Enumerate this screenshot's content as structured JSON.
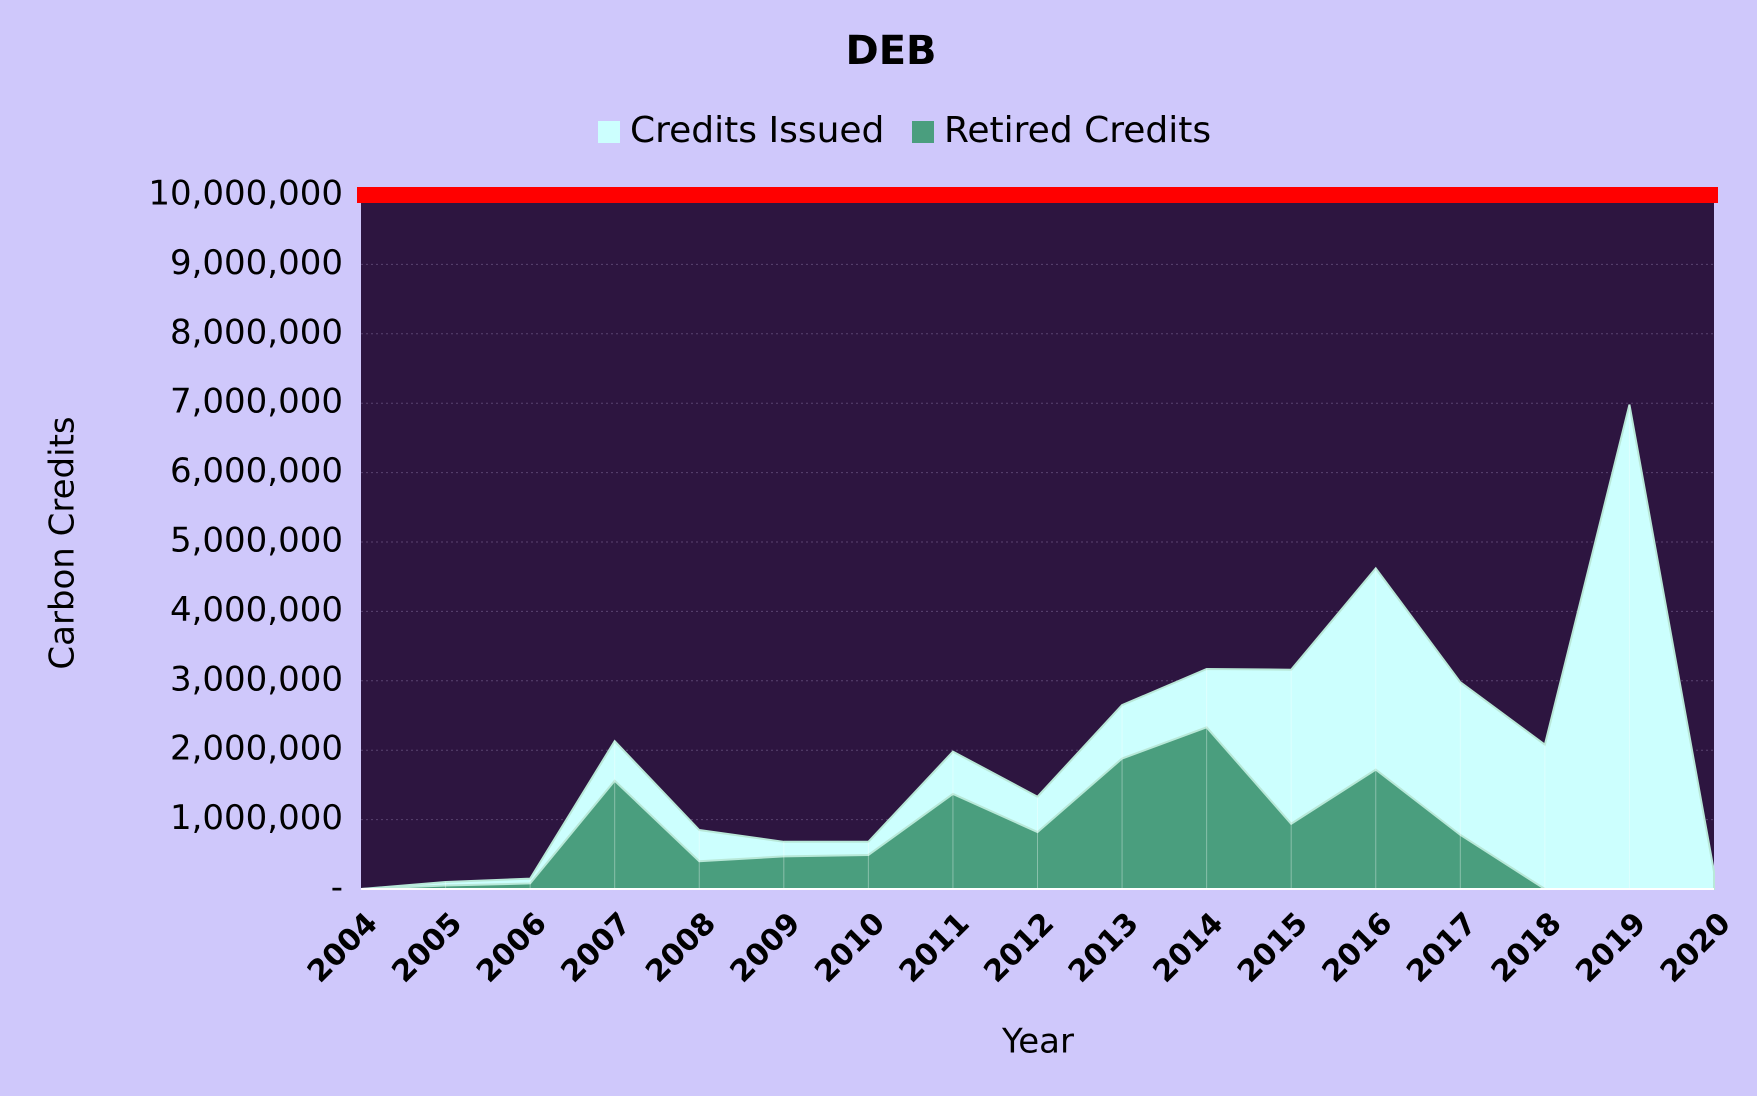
{
  "chart_data": {
    "type": "area",
    "title": "DEB",
    "x_label": "Year",
    "y_label": "Carbon Credits",
    "categories": [
      "2004",
      "2005",
      "2006",
      "2007",
      "2008",
      "2009",
      "2010",
      "2011",
      "2012",
      "2013",
      "2014",
      "2015",
      "2016",
      "2017",
      "2018",
      "2019",
      "2020"
    ],
    "series": [
      {
        "name": "Credits Issued",
        "color": "#ccfffe",
        "values": [
          0,
          100000,
          150000,
          2130000,
          850000,
          680000,
          680000,
          1980000,
          1330000,
          2650000,
          3170000,
          3160000,
          4620000,
          2980000,
          2080000,
          6980000,
          250000
        ]
      },
      {
        "name": "Retired Credits",
        "color": "#4a9e7e",
        "values": [
          0,
          50000,
          80000,
          1560000,
          400000,
          470000,
          490000,
          1370000,
          820000,
          1880000,
          2330000,
          940000,
          1720000,
          780000,
          0,
          0,
          0
        ]
      }
    ],
    "ylim": [
      0,
      10000000
    ],
    "yticks": [
      {
        "value": 0,
        "label": "-"
      },
      {
        "value": 1000000,
        "label": "1,000,000"
      },
      {
        "value": 2000000,
        "label": "2,000,000"
      },
      {
        "value": 3000000,
        "label": "3,000,000"
      },
      {
        "value": 4000000,
        "label": "4,000,000"
      },
      {
        "value": 5000000,
        "label": "5,000,000"
      },
      {
        "value": 6000000,
        "label": "6,000,000"
      },
      {
        "value": 7000000,
        "label": "7,000,000"
      },
      {
        "value": 8000000,
        "label": "8,000,000"
      },
      {
        "value": 9000000,
        "label": "9,000,000"
      },
      {
        "value": 10000000,
        "label": "10,000,000"
      }
    ],
    "grid": true,
    "legend": "top"
  }
}
